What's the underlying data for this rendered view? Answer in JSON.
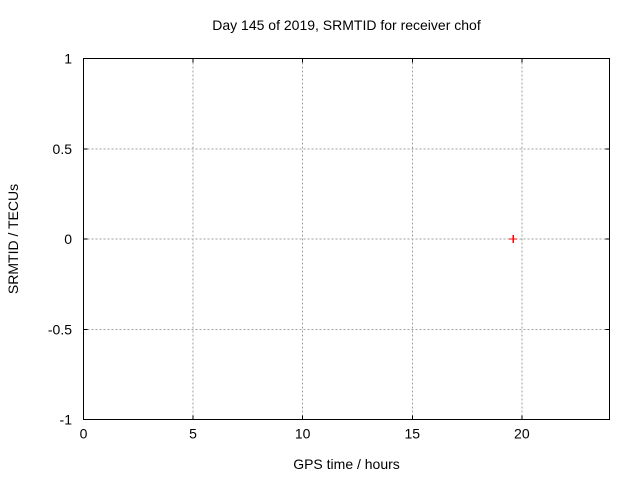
{
  "window": {
    "background": "#ffffff"
  },
  "chart_data": {
    "type": "scatter",
    "title": "Day 145 of 2019, SRMTID for receiver chof",
    "xlabel": "GPS time / hours",
    "ylabel": "SRMTID / TECUs",
    "xlim": [
      0,
      24
    ],
    "ylim": [
      -1,
      1
    ],
    "xticks": [
      0,
      5,
      10,
      15,
      20
    ],
    "xtick_labels": [
      "0",
      "5",
      "10",
      "15",
      "20"
    ],
    "yticks": [
      -1,
      -0.5,
      0,
      0.5,
      1
    ],
    "ytick_labels": [
      "-1",
      "-0.5",
      "0",
      "0.5",
      "1"
    ],
    "grid": true,
    "grid_style": "dashed",
    "legend": "none",
    "series": [
      {
        "name": "SRMTID",
        "marker": "plus",
        "color": "#ff0000",
        "points": [
          {
            "x": 19.6,
            "y": 0.0
          }
        ]
      }
    ],
    "colors": {
      "border": "#000000",
      "grid": "#a0a0a0",
      "text": "#000000",
      "background": "#ffffff"
    }
  }
}
